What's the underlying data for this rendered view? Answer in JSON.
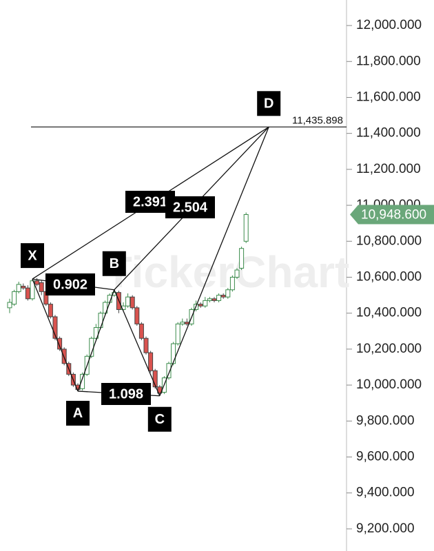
{
  "chart_data": {
    "type": "candlestick",
    "watermark": "TickerChart",
    "ylim": [
      9077,
      12142
    ],
    "yticks": [
      {
        "value": 9200,
        "label": "9,200.000"
      },
      {
        "value": 9400,
        "label": "9,400.000"
      },
      {
        "value": 9600,
        "label": "9,600.000"
      },
      {
        "value": 9800,
        "label": "9,800.000"
      },
      {
        "value": 10000,
        "label": "10,000.000"
      },
      {
        "value": 10200,
        "label": "10,200.000"
      },
      {
        "value": 10400,
        "label": "10,400.000"
      },
      {
        "value": 10600,
        "label": "10,600.000"
      },
      {
        "value": 10800,
        "label": "10,800.000"
      },
      {
        "value": 11000,
        "label": "11,000.000"
      },
      {
        "value": 11200,
        "label": "11,200.000"
      },
      {
        "value": 11400,
        "label": "11,400.000"
      },
      {
        "value": 11600,
        "label": "11,600.000"
      },
      {
        "value": 11800,
        "label": "11,800.000"
      },
      {
        "value": 12000,
        "label": "12,000.000"
      }
    ],
    "up_color": "#3a8a4a",
    "down_color": "#d9534f",
    "open": [
      10430,
      10450,
      10520,
      10550,
      10540,
      10480,
      10580,
      10570,
      10520,
      10450,
      10380,
      10260,
      10200,
      10120,
      10060,
      10000,
      9980,
      10060,
      10160,
      10260,
      10320,
      10400,
      10460,
      10500,
      10515,
      10420,
      10440,
      10490,
      10430,
      10340,
      10260,
      10180,
      10080,
      9990,
      9960,
      10040,
      10120,
      10230,
      10340,
      10350,
      10340,
      10420,
      10450,
      10440,
      10470,
      10480,
      10470,
      10500,
      10490,
      10530,
      10600,
      10650,
      10800
    ],
    "close": [
      10460,
      10520,
      10560,
      10540,
      10480,
      10580,
      10560,
      10520,
      10450,
      10380,
      10260,
      10200,
      10120,
      10060,
      10000,
      9975,
      10060,
      10160,
      10260,
      10320,
      10400,
      10460,
      10500,
      10515,
      10420,
      10440,
      10490,
      10430,
      10340,
      10260,
      10180,
      10080,
      9990,
      9955,
      10040,
      10120,
      10230,
      10340,
      10350,
      10340,
      10420,
      10450,
      10440,
      10470,
      10480,
      10470,
      10500,
      10490,
      10530,
      10600,
      10640,
      10760,
      10948.6
    ],
    "high": [
      10480,
      10530,
      10575,
      10565,
      10555,
      10590,
      10595,
      10585,
      10530,
      10460,
      10390,
      10270,
      10210,
      10130,
      10070,
      10010,
      10070,
      10170,
      10270,
      10340,
      10410,
      10470,
      10510,
      10530,
      10525,
      10460,
      10510,
      10500,
      10440,
      10350,
      10270,
      10190,
      10090,
      10000,
      10050,
      10130,
      10240,
      10350,
      10370,
      10370,
      10430,
      10470,
      10460,
      10490,
      10490,
      10490,
      10510,
      10510,
      10540,
      10610,
      10650,
      10770,
      10960
    ],
    "low": [
      10400,
      10440,
      10510,
      10530,
      10470,
      10470,
      10550,
      10500,
      10440,
      10370,
      10250,
      10190,
      10110,
      10050,
      9990,
      9966,
      9970,
      10050,
      10150,
      10250,
      10310,
      10390,
      10450,
      10490,
      10400,
      10410,
      10430,
      10420,
      10330,
      10250,
      10170,
      10070,
      9980,
      9940,
      9950,
      10030,
      10110,
      10220,
      10330,
      10330,
      10330,
      10410,
      10430,
      10430,
      10460,
      10460,
      10460,
      10480,
      10480,
      10520,
      10590,
      10640,
      10790
    ],
    "pattern_points": [
      {
        "label": "X",
        "x": 5,
        "value": 10590
      },
      {
        "label": "A",
        "x": 15,
        "value": 9966
      },
      {
        "label": "B",
        "x": 23,
        "value": 10530
      },
      {
        "label": "C",
        "x": 33,
        "value": 9940
      },
      {
        "label": "D",
        "x": 57,
        "value": 11435.898
      }
    ],
    "ratios": [
      "0.902",
      "1.098",
      "2.391",
      "2.504"
    ],
    "target_line": {
      "value": 11435.898,
      "label": "11,435.898"
    },
    "last_price": {
      "value": 10948.6,
      "label": "10,948.600",
      "color": "#6aa77a"
    }
  }
}
